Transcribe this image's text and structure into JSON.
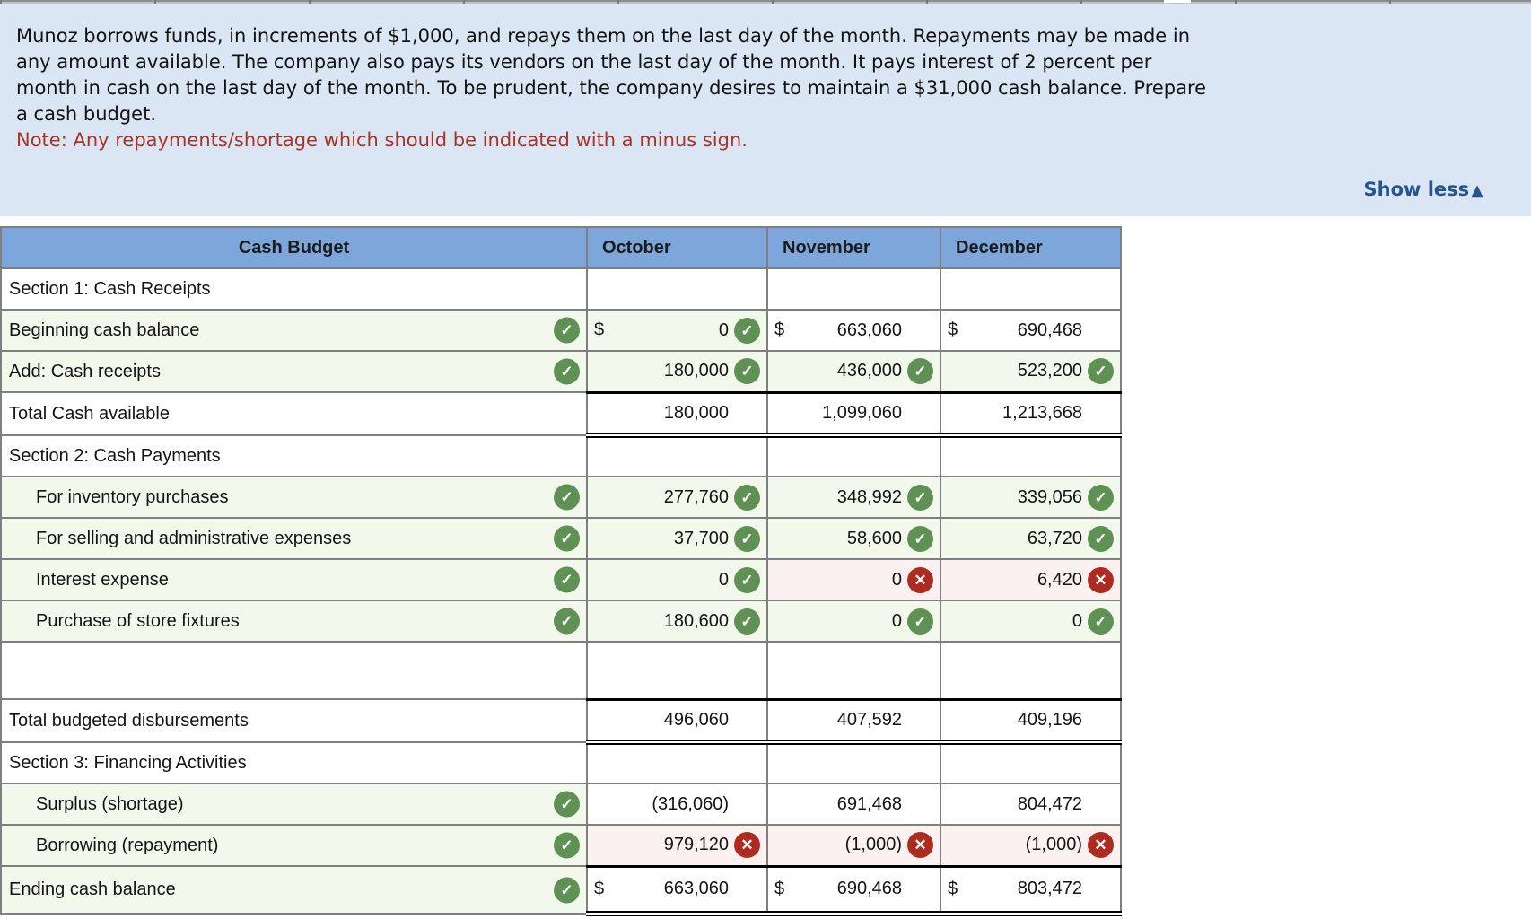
{
  "problem": {
    "line1": "Munoz borrows funds, in increments of $1,000, and repays them on the last day of the month. Repayments may be made in",
    "line2": "any amount available. The company also pays its vendors on the last day of the month. It pays interest of 2 percent per",
    "line3": "month in cash on the last day of the month. To be prudent, the company desires to maintain a $31,000 cash balance. Prepare",
    "line4": "a cash budget.",
    "note": "Note: Any repayments/shortage which should be indicated with a minus sign.",
    "show_less_label": "Show less",
    "show_less_arrow": "▲"
  },
  "icons": {
    "check": "✓",
    "x": "✕"
  },
  "colors": {
    "panel_blue": "#dae6f4",
    "header_blue": "#7da7da",
    "cell_green": "#f3f8ed",
    "cell_pink": "#fbf1f1",
    "icon_green": "#5f9155",
    "icon_red": "#ae2b20",
    "note_red": "#a93226",
    "link_navy": "#27548f",
    "grid_gray": "#7f7f7f"
  },
  "table": {
    "currency_symbol": "$",
    "headers": [
      "Cash Budget",
      "October",
      "November",
      "December"
    ],
    "rows": [
      {
        "type": "section",
        "label": "Section 1: Cash Receipts",
        "cells": [
          {},
          {},
          {}
        ]
      },
      {
        "type": "data",
        "label": "Beginning cash balance",
        "indent": false,
        "label_icon": "check",
        "cells": [
          {
            "dollar": true,
            "value": "0",
            "icon": "check",
            "bg": "green"
          },
          {
            "dollar": true,
            "value": "663,060",
            "bg": "white"
          },
          {
            "dollar": true,
            "value": "690,468",
            "bg": "white"
          }
        ]
      },
      {
        "type": "data",
        "label": "Add: Cash receipts",
        "indent": false,
        "label_icon": "check",
        "cells": [
          {
            "value": "180,000",
            "icon": "check",
            "bg": "green"
          },
          {
            "value": "436,000",
            "icon": "check",
            "bg": "green"
          },
          {
            "value": "523,200",
            "icon": "check",
            "bg": "green"
          }
        ]
      },
      {
        "type": "total",
        "label": "Total Cash available",
        "cells": [
          {
            "value": "180,000"
          },
          {
            "value": "1,099,060"
          },
          {
            "value": "1,213,668"
          }
        ]
      },
      {
        "type": "section",
        "label": "Section 2: Cash Payments",
        "cells": [
          {},
          {},
          {}
        ]
      },
      {
        "type": "data",
        "label": "For inventory purchases",
        "indent": true,
        "label_icon": "check",
        "cells": [
          {
            "value": "277,760",
            "icon": "check",
            "bg": "green"
          },
          {
            "value": "348,992",
            "icon": "check",
            "bg": "green"
          },
          {
            "value": "339,056",
            "icon": "check",
            "bg": "green"
          }
        ]
      },
      {
        "type": "data",
        "label": "For selling and administrative expenses",
        "indent": true,
        "label_icon": "check",
        "cells": [
          {
            "value": "37,700",
            "icon": "check",
            "bg": "green"
          },
          {
            "value": "58,600",
            "icon": "check",
            "bg": "green"
          },
          {
            "value": "63,720",
            "icon": "check",
            "bg": "green"
          }
        ]
      },
      {
        "type": "data",
        "label": "Interest expense",
        "indent": true,
        "label_icon": "check",
        "cells": [
          {
            "value": "0",
            "icon": "check",
            "bg": "green"
          },
          {
            "value": "0",
            "icon": "x",
            "bg": "pink"
          },
          {
            "value": "6,420",
            "icon": "x",
            "bg": "pink"
          }
        ]
      },
      {
        "type": "data",
        "label": "Purchase of store fixtures",
        "indent": true,
        "label_icon": "check",
        "cells": [
          {
            "value": "180,600",
            "icon": "check",
            "bg": "green"
          },
          {
            "value": "0",
            "icon": "check",
            "bg": "green"
          },
          {
            "value": "0",
            "icon": "check",
            "bg": "green"
          }
        ]
      },
      {
        "type": "spacer",
        "label": "",
        "cells": [
          {},
          {},
          {}
        ]
      },
      {
        "type": "total",
        "label": "Total budgeted disbursements",
        "cells": [
          {
            "value": "496,060"
          },
          {
            "value": "407,592"
          },
          {
            "value": "409,196"
          }
        ]
      },
      {
        "type": "section",
        "label": "Section 3: Financing Activities",
        "cells": [
          {},
          {},
          {}
        ]
      },
      {
        "type": "data",
        "label": "Surplus (shortage)",
        "indent": true,
        "label_icon": "check",
        "cells": [
          {
            "value": "(316,060)",
            "bg": "white"
          },
          {
            "value": "691,468",
            "bg": "white"
          },
          {
            "value": "804,472",
            "bg": "white"
          }
        ]
      },
      {
        "type": "data",
        "label": "Borrowing (repayment)",
        "indent": true,
        "label_icon": "check",
        "cells": [
          {
            "value": "979,120",
            "icon": "x",
            "bg": "pink"
          },
          {
            "value": "(1,000)",
            "icon": "x",
            "bg": "pink"
          },
          {
            "value": "(1,000)",
            "icon": "x",
            "bg": "pink"
          }
        ]
      },
      {
        "type": "ending",
        "label": "Ending cash balance",
        "indent": false,
        "label_icon": "check",
        "cells": [
          {
            "dollar": true,
            "value": "663,060",
            "bg": "white"
          },
          {
            "dollar": true,
            "value": "690,468",
            "bg": "white"
          },
          {
            "dollar": true,
            "value": "803,472",
            "bg": "white"
          }
        ]
      }
    ]
  }
}
